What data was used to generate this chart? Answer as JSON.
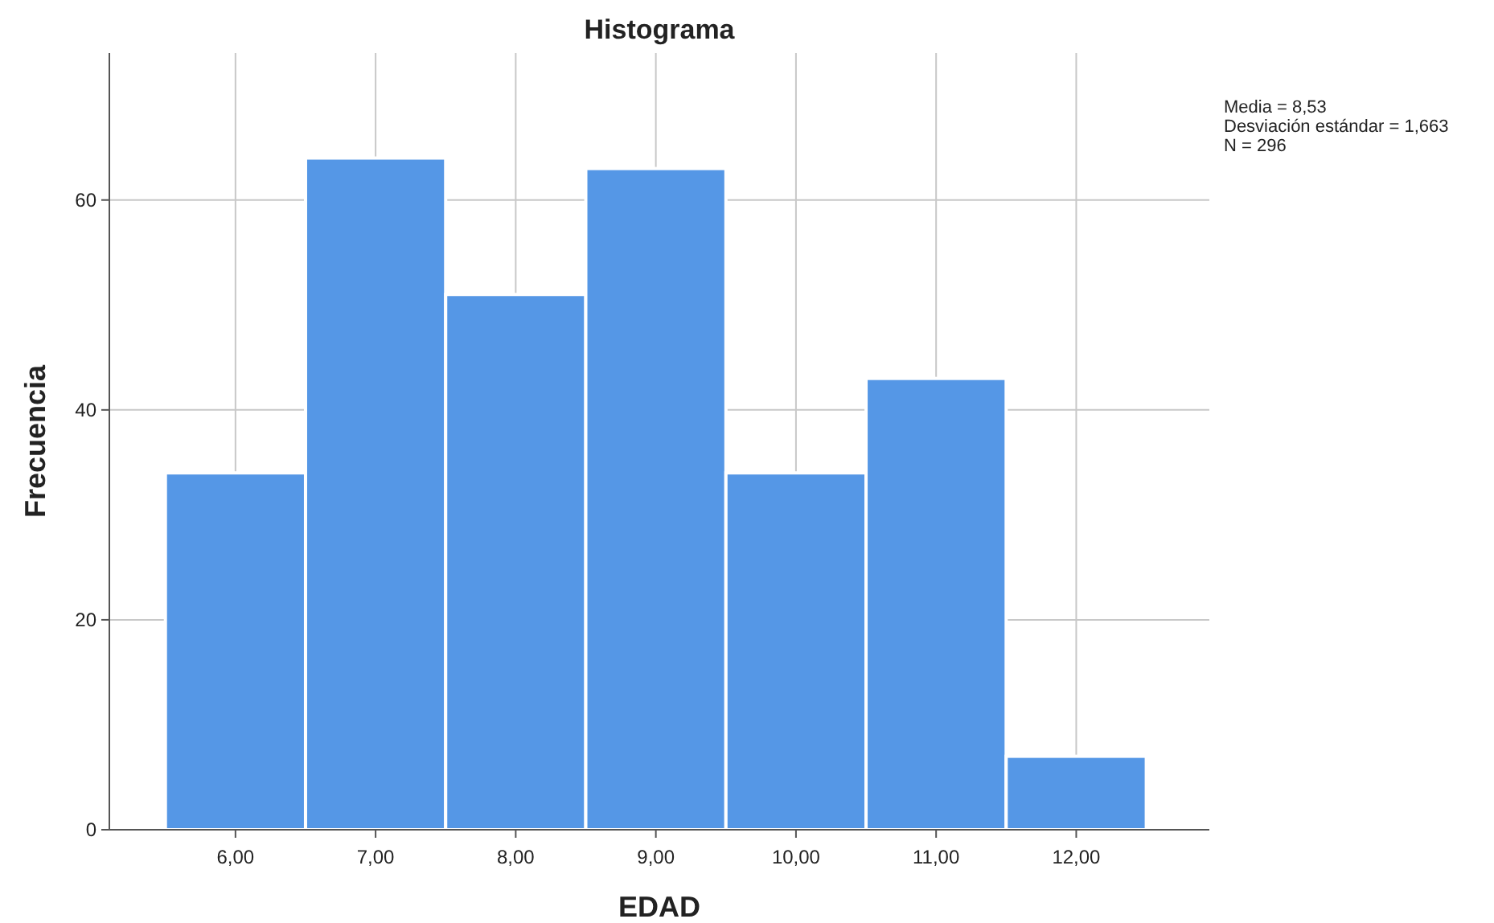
{
  "chart_data": {
    "type": "histogram",
    "title": "Histograma",
    "xlabel": "EDAD",
    "ylabel": "Frecuencia",
    "bins": [
      5.5,
      6.5,
      7.5,
      8.5,
      9.5,
      10.5,
      11.5,
      12.5
    ],
    "values": [
      34,
      64,
      51,
      63,
      34,
      43,
      7
    ],
    "color": "#5597e6",
    "xlim": [
      5.1,
      12.95
    ],
    "xticks": [
      {
        "value": 6,
        "label": "6,00"
      },
      {
        "value": 7,
        "label": "7,00"
      },
      {
        "value": 8,
        "label": "8,00"
      },
      {
        "value": 9,
        "label": "9,00"
      },
      {
        "value": 10,
        "label": "10,00"
      },
      {
        "value": 11,
        "label": "11,00"
      },
      {
        "value": 12,
        "label": "12,00"
      }
    ],
    "ylim": [
      0,
      74
    ],
    "yticks": [
      0,
      20,
      40,
      60
    ],
    "grid": true,
    "annotations": [
      "Media = 8,53",
      "Desviación estándar = 1,663",
      "N = 296"
    ]
  }
}
